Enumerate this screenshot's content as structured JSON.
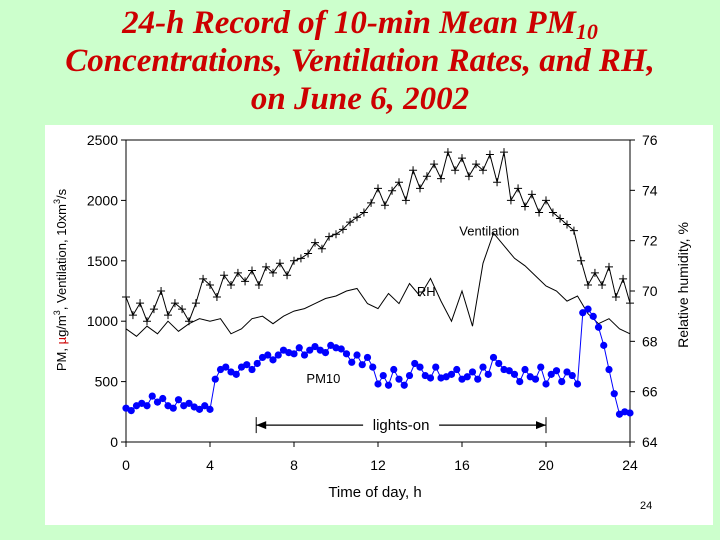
{
  "slide": {
    "title_line1": "24-h Record of 10-min Mean PM",
    "title_sub": "10",
    "title_line2": "Concentrations, Ventilation Rates, and RH,",
    "title_line3": "on June 6, 2002",
    "page_number": "24"
  },
  "colors": {
    "background": "#ccffcc",
    "title": "#cc0000",
    "pm10": "#0000ff",
    "ventilation": "#000000",
    "rh": "#000000"
  },
  "chart_data": {
    "type": "line",
    "xlabel": "Time of day, h",
    "ylabel_left": "PM, µg/m³, Ventilation, 10xm³/s",
    "ylabel_left_parts": {
      "a": "PM,",
      "b": "µ",
      "c": "g/m",
      "d": "3",
      "e": ", Ventilation, 10xm",
      "f": "3",
      "g": "/s"
    },
    "ylabel_right": "Relative humidity, %",
    "xlim": [
      0,
      24
    ],
    "ylim_left": [
      0,
      2500
    ],
    "ylim_right": [
      64,
      76
    ],
    "x_ticks": [
      0,
      4,
      8,
      12,
      16,
      20,
      24
    ],
    "y_ticks_left": [
      0,
      500,
      1000,
      1500,
      2000,
      2500
    ],
    "y_ticks_right": [
      64,
      66,
      68,
      70,
      72,
      74,
      76
    ],
    "grid": false,
    "series": [
      {
        "name": "Ventilation",
        "axis": "left",
        "marker": "plus",
        "x": [
          0,
          0.33,
          0.67,
          1,
          1.33,
          1.67,
          2,
          2.33,
          2.67,
          3,
          3.33,
          3.67,
          4,
          4.33,
          4.67,
          5,
          5.33,
          5.67,
          6,
          6.33,
          6.67,
          7,
          7.33,
          7.67,
          8,
          8.33,
          8.67,
          9,
          9.33,
          9.67,
          10,
          10.33,
          10.67,
          11,
          11.33,
          11.67,
          12,
          12.33,
          12.67,
          13,
          13.33,
          13.67,
          14,
          14.33,
          14.67,
          15,
          15.33,
          15.67,
          16,
          16.33,
          16.67,
          17,
          17.33,
          17.67,
          18,
          18.33,
          18.67,
          19,
          19.33,
          19.67,
          20,
          20.33,
          20.67,
          21,
          21.33,
          21.67,
          22,
          22.33,
          22.67,
          23,
          23.33,
          23.67,
          24
        ],
        "y": [
          1200,
          1050,
          1150,
          1000,
          1100,
          1250,
          1050,
          1150,
          1100,
          1000,
          1150,
          1350,
          1300,
          1200,
          1380,
          1300,
          1400,
          1330,
          1420,
          1300,
          1450,
          1400,
          1480,
          1380,
          1500,
          1520,
          1560,
          1650,
          1600,
          1700,
          1720,
          1760,
          1820,
          1860,
          1900,
          1980,
          2100,
          1960,
          2080,
          2150,
          2000,
          2250,
          2100,
          2200,
          2300,
          2180,
          2400,
          2250,
          2350,
          2200,
          2300,
          2250,
          2380,
          2150,
          2400,
          2000,
          2100,
          1950,
          2050,
          1900,
          2000,
          1900,
          1850,
          1800,
          1750,
          1500,
          1300,
          1400,
          1300,
          1450,
          1200,
          1350,
          1150
        ]
      },
      {
        "name": "RH",
        "axis": "right",
        "marker": "none",
        "x": [
          0,
          0.5,
          1,
          1.5,
          2,
          2.5,
          3,
          3.5,
          4,
          4.5,
          5,
          5.5,
          6,
          6.5,
          7,
          7.5,
          8,
          8.5,
          9,
          9.5,
          10,
          10.5,
          11,
          11.5,
          12,
          12.5,
          13,
          13.5,
          14,
          14.5,
          15,
          15.5,
          16,
          16.5,
          17,
          17.5,
          18,
          18.5,
          19,
          19.5,
          20,
          20.5,
          21,
          21.5,
          22,
          22.5,
          23,
          23.5,
          24
        ],
        "y": [
          68.5,
          68.2,
          68.6,
          68.3,
          68.8,
          68.4,
          68.7,
          68.9,
          68.8,
          68.9,
          68.3,
          68.5,
          68.9,
          69.0,
          68.7,
          69.0,
          69.2,
          69.3,
          69.5,
          69.7,
          69.8,
          70.0,
          70.1,
          69.5,
          69.3,
          69.9,
          69.5,
          70.3,
          69.8,
          70.5,
          69.6,
          68.8,
          70.0,
          68.6,
          71.1,
          72.3,
          71.8,
          71.3,
          71.0,
          70.6,
          70.2,
          70.0,
          69.6,
          69.8,
          69.1,
          68.7,
          68.9,
          68.5,
          68.3
        ]
      },
      {
        "name": "PM10",
        "axis": "left",
        "marker": "dot",
        "x": [
          0,
          0.25,
          0.5,
          0.75,
          1,
          1.25,
          1.5,
          1.75,
          2,
          2.25,
          2.5,
          2.75,
          3,
          3.25,
          3.5,
          3.75,
          4,
          4.25,
          4.5,
          4.75,
          5,
          5.25,
          5.5,
          5.75,
          6,
          6.25,
          6.5,
          6.75,
          7,
          7.25,
          7.5,
          7.75,
          8,
          8.25,
          8.5,
          8.75,
          9,
          9.25,
          9.5,
          9.75,
          10,
          10.25,
          10.5,
          10.75,
          11,
          11.25,
          11.5,
          11.75,
          12,
          12.25,
          12.5,
          12.75,
          13,
          13.25,
          13.5,
          13.75,
          14,
          14.25,
          14.5,
          14.75,
          15,
          15.25,
          15.5,
          15.75,
          16,
          16.25,
          16.5,
          16.75,
          17,
          17.25,
          17.5,
          17.75,
          18,
          18.25,
          18.5,
          18.75,
          19,
          19.25,
          19.5,
          19.75,
          20,
          20.25,
          20.5,
          20.75,
          21,
          21.25,
          21.5,
          21.75,
          22,
          22.25,
          22.5,
          22.75,
          23,
          23.25,
          23.5,
          23.75,
          24
        ],
        "y": [
          280,
          260,
          300,
          320,
          300,
          380,
          330,
          360,
          300,
          280,
          350,
          300,
          320,
          290,
          270,
          300,
          270,
          520,
          600,
          620,
          580,
          560,
          620,
          640,
          600,
          650,
          700,
          720,
          680,
          720,
          760,
          740,
          730,
          780,
          720,
          760,
          790,
          760,
          740,
          800,
          780,
          770,
          730,
          660,
          720,
          640,
          700,
          620,
          480,
          550,
          470,
          600,
          520,
          470,
          550,
          650,
          620,
          550,
          530,
          620,
          530,
          540,
          560,
          600,
          520,
          540,
          580,
          520,
          620,
          560,
          700,
          650,
          600,
          590,
          560,
          500,
          600,
          540,
          520,
          620,
          480,
          560,
          590,
          500,
          580,
          550,
          480,
          1070,
          1100,
          1040,
          950,
          800,
          600,
          400,
          230,
          250,
          240
        ]
      }
    ],
    "annotations": [
      {
        "text": "Ventilation",
        "x": 17.3,
        "y": 1710,
        "axis": "left"
      },
      {
        "text": "RH",
        "x": 14.3,
        "y": 1210,
        "axis": "left"
      },
      {
        "text": "PM10",
        "x": 9.4,
        "y": 490,
        "axis": "left"
      },
      {
        "text": "lights-on",
        "x_range": [
          6.2,
          20.0
        ],
        "y": 140,
        "axis": "left"
      }
    ]
  }
}
